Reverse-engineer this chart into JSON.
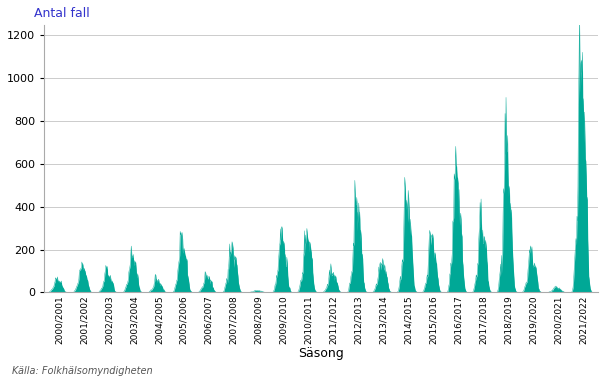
{
  "title": "Antal fall",
  "xlabel": "Säsong",
  "source": "Källa: Folkhälsomyndigheten",
  "fill_color": "#00A896",
  "background_color": "#ffffff",
  "grid_color": "#cccccc",
  "ylim": [
    0,
    1250
  ],
  "yticks": [
    0,
    200,
    400,
    600,
    800,
    1000,
    1200
  ],
  "seasons": [
    "2000/2001",
    "2001/2002",
    "2002/2003",
    "2003/2004",
    "2004/2005",
    "2005/2006",
    "2006/2007",
    "2007/2008",
    "2008/2009",
    "2009/2010",
    "2010/2011",
    "2011/2012",
    "2012/2013",
    "2013/2014",
    "2014/2015",
    "2015/2016",
    "2016/2017",
    "2017/2018",
    "2018/2019",
    "2019/2020",
    "2020/2021",
    "2021/2022"
  ],
  "season_peaks": [
    65,
    135,
    105,
    175,
    65,
    260,
    85,
    235,
    10,
    280,
    305,
    105,
    430,
    160,
    455,
    270,
    600,
    340,
    695,
    195,
    25,
    1130
  ],
  "season_width_factor": [
    0.55,
    0.6,
    0.55,
    0.6,
    0.45,
    0.65,
    0.45,
    0.6,
    0.2,
    0.65,
    0.65,
    0.5,
    0.7,
    0.55,
    0.7,
    0.65,
    0.72,
    0.65,
    0.75,
    0.6,
    0.3,
    0.8
  ]
}
